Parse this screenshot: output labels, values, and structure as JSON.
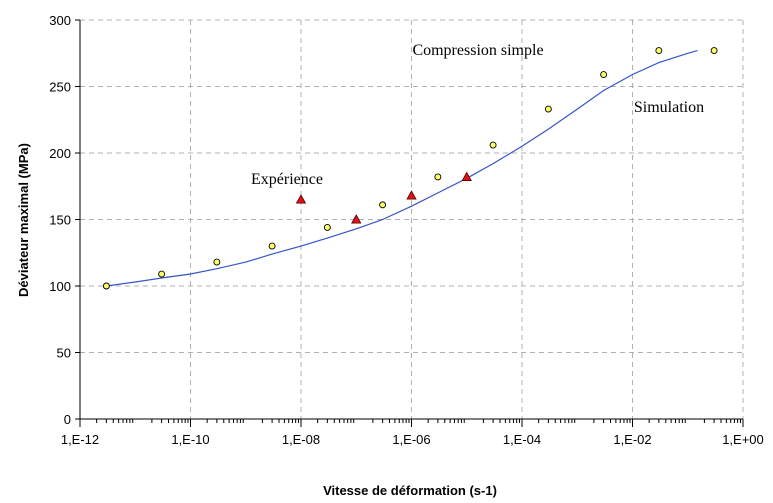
{
  "chart_data": {
    "type": "scatter",
    "xlabel": "Vitesse de déformation (s-1)",
    "ylabel": "Déviateur maximal (MPa)",
    "x_scale": "log",
    "xlim": [
      1e-12,
      1
    ],
    "ylim": [
      0,
      300
    ],
    "x_ticks": [
      1e-12,
      1e-10,
      1e-08,
      1e-06,
      0.0001,
      0.01,
      1
    ],
    "x_tick_labels": [
      "1,E-12",
      "1,E-10",
      "1,E-08",
      "1,E-06",
      "1,E-04",
      "1,E-02",
      "1,E+00"
    ],
    "y_ticks": [
      0,
      50,
      100,
      150,
      200,
      250,
      300
    ],
    "y_tick_labels": [
      "0",
      "50",
      "100",
      "150",
      "200",
      "250",
      "300"
    ],
    "grid": true,
    "annotations": [
      "Compression simple",
      "Simulation",
      "Expérience"
    ],
    "series": [
      {
        "kind": "line",
        "color": "#3355cc",
        "x": [
          3e-12,
          1e-11,
          3e-11,
          1e-10,
          3e-10,
          1e-09,
          3e-09,
          1e-08,
          3e-08,
          1e-07,
          3e-07,
          1e-06,
          3e-06,
          1e-05,
          3e-05,
          0.0001,
          0.0003,
          0.001,
          0.003,
          0.01,
          0.03,
          0.1,
          0.15
        ],
        "y": [
          100,
          103,
          106,
          109,
          113,
          118,
          124,
          130,
          136,
          143,
          150,
          160,
          170,
          181,
          192,
          205,
          218,
          233,
          247,
          259,
          268,
          275,
          277
        ]
      },
      {
        "kind": "marker",
        "marker": "circle",
        "color": "#ffff66",
        "x": [
          3e-12,
          3e-11,
          3e-10,
          3e-09,
          3e-08,
          3e-07,
          3e-06,
          3e-05,
          0.0003,
          0.003,
          0.03,
          0.3
        ],
        "y": [
          100,
          109,
          118,
          130,
          144,
          161,
          182,
          206,
          233,
          259,
          277,
          277
        ]
      },
      {
        "kind": "marker",
        "marker": "triangle",
        "color": "#dd1111",
        "x": [
          1e-08,
          1e-07,
          1e-06,
          1e-05
        ],
        "y": [
          165,
          150,
          168,
          182
        ]
      }
    ]
  }
}
